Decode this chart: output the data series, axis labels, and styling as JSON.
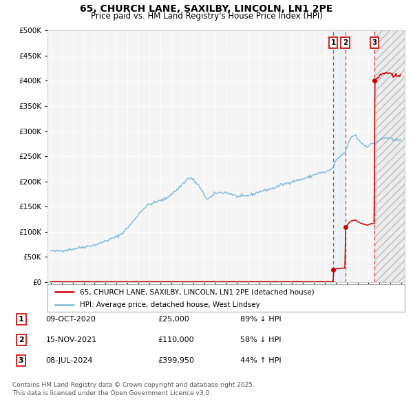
{
  "title": "65, CHURCH LANE, SAXILBY, LINCOLN, LN1 2PE",
  "subtitle": "Price paid vs. HM Land Registry's House Price Index (HPI)",
  "background_color": "#ffffff",
  "plot_bg_color": "#f5f5f5",
  "grid_color": "#ffffff",
  "hpi_color": "#7ab5d9",
  "price_color": "#cc0000",
  "transactions": [
    {
      "date_year": 2020.78,
      "price": 25000,
      "label": "1"
    },
    {
      "date_year": 2021.88,
      "price": 110000,
      "label": "2"
    },
    {
      "date_year": 2024.52,
      "price": 399950,
      "label": "3"
    }
  ],
  "transaction_annotations": [
    {
      "label": "1",
      "date": "09-OCT-2020",
      "price": "£25,000",
      "pct": "89% ↓ HPI"
    },
    {
      "label": "2",
      "date": "15-NOV-2021",
      "price": "£110,000",
      "pct": "58% ↓ HPI"
    },
    {
      "label": "3",
      "date": "08-JUL-2024",
      "price": "£399,950",
      "pct": "44% ↑ HPI"
    }
  ],
  "legend1": "65, CHURCH LANE, SAXILBY, LINCOLN, LN1 2PE (detached house)",
  "legend2": "HPI: Average price, detached house, West Lindsey",
  "footnote": "Contains HM Land Registry data © Crown copyright and database right 2025.\nThis data is licensed under the Open Government Licence v3.0.",
  "ylim": [
    0,
    500000
  ],
  "xlim_left": 1994.7,
  "xlim_right": 2027.3
}
